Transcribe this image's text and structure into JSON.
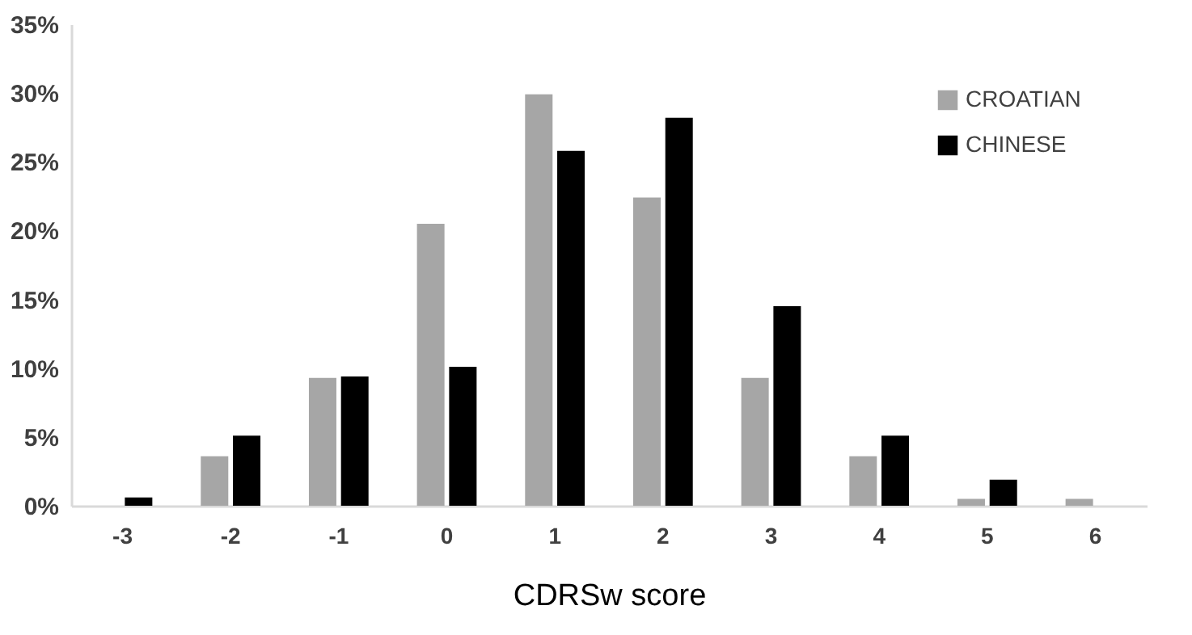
{
  "chart_data": {
    "type": "bar",
    "xlabel": "CDRSw score",
    "categories": [
      "-3",
      "-2",
      "-1",
      "0",
      "1",
      "2",
      "3",
      "4",
      "5",
      "6"
    ],
    "series": [
      {
        "name": "CROATIAN",
        "color": "#a6a6a6",
        "values": [
          null,
          3.6,
          9.3,
          20.5,
          29.9,
          22.4,
          9.3,
          3.6,
          0.5,
          0.5
        ]
      },
      {
        "name": "CHINESE",
        "color": "#000000",
        "values": [
          0.6,
          5.1,
          9.4,
          10.1,
          25.8,
          28.2,
          14.5,
          5.1,
          1.9,
          null
        ]
      }
    ],
    "ylim": [
      0,
      35
    ],
    "yticks": [
      {
        "value": 0,
        "label": "0%"
      },
      {
        "value": 5,
        "label": "5%"
      },
      {
        "value": 10,
        "label": "10%"
      },
      {
        "value": 15,
        "label": "15%"
      },
      {
        "value": 20,
        "label": "20%"
      },
      {
        "value": 25,
        "label": "25%"
      },
      {
        "value": 30,
        "label": "30%"
      },
      {
        "value": 35,
        "label": "35%"
      }
    ],
    "grid": false,
    "legend": "top right"
  }
}
